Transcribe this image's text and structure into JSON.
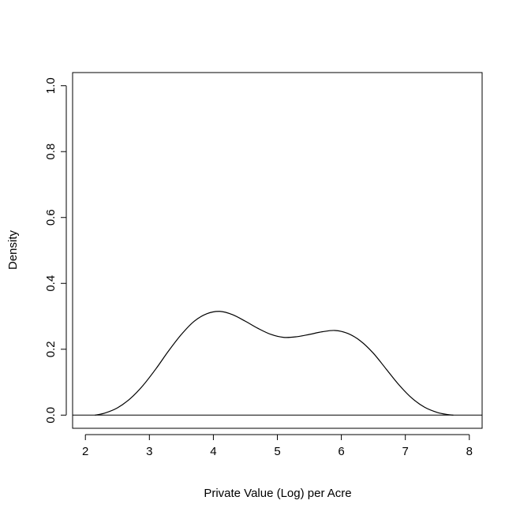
{
  "chart_data": {
    "type": "line",
    "title": "",
    "xlabel": "Private Value (Log) per Acre",
    "ylabel": "Density",
    "xlim": [
      1.8,
      8.2
    ],
    "ylim": [
      -0.04,
      1.04
    ],
    "x_ticks": [
      2,
      3,
      4,
      5,
      6,
      7,
      8
    ],
    "x_tick_labels": [
      "2",
      "3",
      "4",
      "5",
      "6",
      "7",
      "8"
    ],
    "y_ticks": [
      0.0,
      0.2,
      0.4,
      0.6,
      0.8,
      1.0
    ],
    "y_tick_labels": [
      "0.0",
      "0.2",
      "0.4",
      "0.6",
      "0.8",
      "1.0"
    ],
    "grid": false,
    "baseline": 0,
    "series": [
      {
        "x": [
          2.15,
          2.3,
          2.5,
          2.7,
          2.9,
          3.1,
          3.3,
          3.5,
          3.7,
          3.9,
          4.1,
          4.3,
          4.5,
          4.7,
          4.9,
          5.1,
          5.3,
          5.5,
          5.7,
          5.9,
          6.1,
          6.3,
          6.5,
          6.7,
          6.9,
          7.1,
          7.3,
          7.5,
          7.65,
          7.75
        ],
        "y": [
          0.0,
          0.006,
          0.022,
          0.05,
          0.09,
          0.14,
          0.195,
          0.245,
          0.285,
          0.308,
          0.315,
          0.305,
          0.285,
          0.263,
          0.245,
          0.236,
          0.238,
          0.245,
          0.253,
          0.257,
          0.248,
          0.225,
          0.188,
          0.14,
          0.092,
          0.052,
          0.024,
          0.008,
          0.002,
          0.0
        ]
      }
    ]
  }
}
